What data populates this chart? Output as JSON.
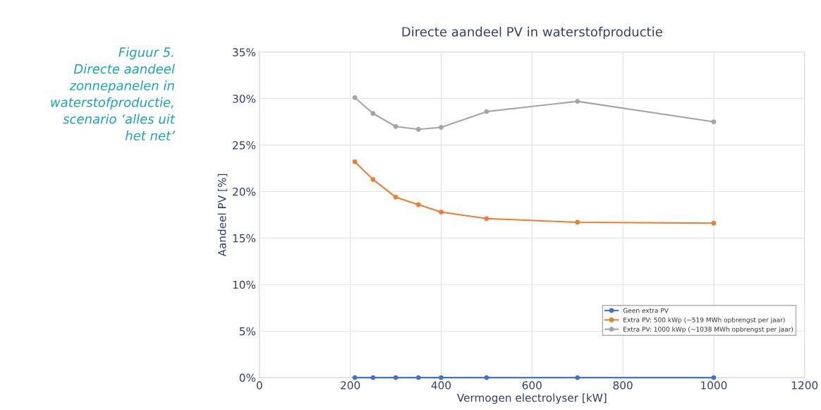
{
  "chart_data": {
    "type": "line",
    "title": "Directe aandeel PV in waterstofproductie",
    "xlabel": "Vermogen electrolyser [kW]",
    "ylabel": "Aandeel PV [%]",
    "annotations": [
      "Figuur 5.\nDirecte aandeel\nzonnepanelen in\nwaterstofproductie,\nscenario ‘alles uit\nhet net’"
    ],
    "x": [
      210,
      250,
      300,
      350,
      400,
      500,
      700,
      1000
    ],
    "series": [
      {
        "name": "Geen extra PV",
        "color": "#4472c4",
        "values": [
          0,
          0,
          0,
          0,
          0,
          0,
          0,
          0
        ]
      },
      {
        "name": "Extra PV: 500 kWp (~519 MWh opbrengst per jaar)",
        "color": "#ed7d31",
        "values": [
          23.2,
          21.3,
          19.4,
          18.6,
          17.8,
          17.1,
          16.7,
          16.6
        ]
      },
      {
        "name": "Extra PV: 1000 kWp (~1038 MWh opbrengst per jaar)",
        "color": "#a5a5a5",
        "values": [
          30.1,
          28.4,
          27.0,
          26.7,
          26.9,
          28.6,
          29.7,
          27.5
        ]
      }
    ],
    "xlim": [
      0,
      1200
    ],
    "xticks": [
      0,
      200,
      400,
      600,
      800,
      1000,
      1200
    ],
    "ylim": [
      0,
      35
    ],
    "yticks": [
      {
        "value": 0,
        "label": "0%"
      },
      {
        "value": 5,
        "label": "5%"
      },
      {
        "value": 10,
        "label": "10%"
      },
      {
        "value": 15,
        "label": "15%"
      },
      {
        "value": 20,
        "label": "20%"
      },
      {
        "value": 25,
        "label": "25%"
      },
      {
        "value": 30,
        "label": "30%"
      },
      {
        "value": 35,
        "label": "35%"
      }
    ],
    "grid": true,
    "legend": "bottom right",
    "marker": "circle",
    "line_style": "solid"
  }
}
